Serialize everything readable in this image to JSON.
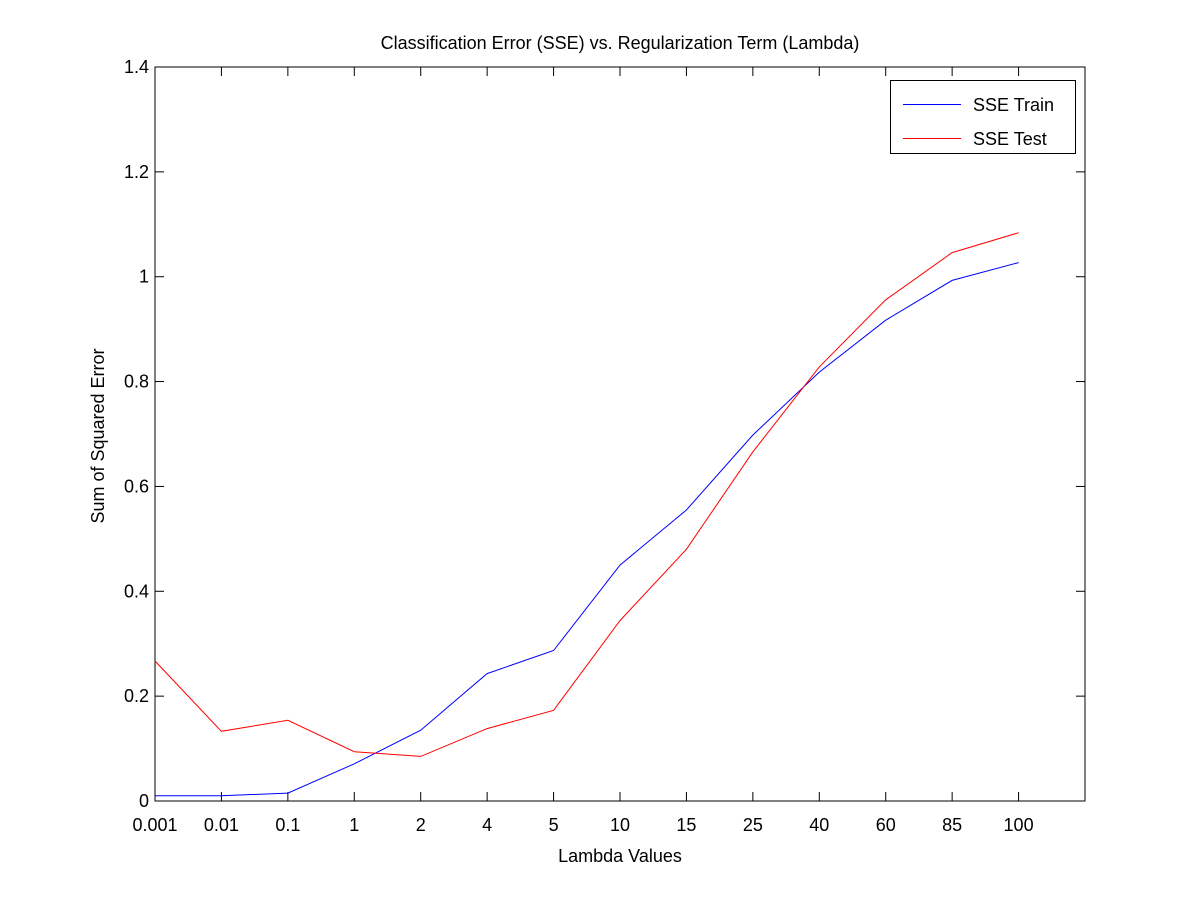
{
  "chart_data": {
    "type": "line",
    "title": "Classification Error (SSE) vs. Regularization Term (Lambda)",
    "xlabel": "Lambda Values",
    "ylabel": "Sum of Squared Error",
    "categories": [
      "0.001",
      "0.01",
      "0.1",
      "1",
      "2",
      "4",
      "5",
      "10",
      "15",
      "25",
      "40",
      "60",
      "85",
      "100"
    ],
    "x_axis_scale": "categorical",
    "ylim": [
      0,
      1.4
    ],
    "yticks": [
      "0",
      "0.2",
      "0.4",
      "0.6",
      "0.8",
      "1",
      "1.2",
      "1.4"
    ],
    "grid": false,
    "legend_position": "top-right",
    "series": [
      {
        "name": "SSE Train",
        "color": "#0000ff",
        "values": [
          0.01,
          0.01,
          0.015,
          0.071,
          0.135,
          0.243,
          0.287,
          0.45,
          0.555,
          0.698,
          0.818,
          0.917,
          0.993,
          1.027
        ]
      },
      {
        "name": "SSE Test",
        "color": "#ff0000",
        "values": [
          0.267,
          0.133,
          0.154,
          0.094,
          0.085,
          0.138,
          0.173,
          0.344,
          0.48,
          0.666,
          0.828,
          0.956,
          1.046,
          1.084
        ]
      }
    ]
  }
}
